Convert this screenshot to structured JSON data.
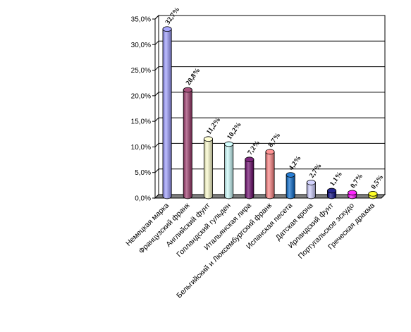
{
  "chart_data": {
    "type": "bar",
    "style": "3d-cylinder",
    "categories": [
      "Немецкая марка",
      "Французский франк",
      "Английский фунт",
      "Голландский гульден",
      "Итальянская лира",
      "Бельгийский и Люксембургский франк",
      "Испанская песета",
      "Датская крона",
      "Ирландский фунт",
      "Португальское эскудо",
      "Греческая драхма"
    ],
    "values": [
      32.7,
      20.8,
      11.2,
      10.2,
      7.2,
      8.7,
      4.2,
      2.7,
      1.1,
      0.7,
      0.5
    ],
    "data_labels": [
      "32,7%",
      "20,8%",
      "11,2%",
      "10,2%",
      "7,2%",
      "8,7%",
      "4,2%",
      "2,7%",
      "1,1%",
      "0,7%",
      "0,5%"
    ],
    "y_ticks": [
      "0,0%",
      "5,0%",
      "10,0%",
      "15,0%",
      "20,0%",
      "25,0%",
      "30,0%",
      "35,0%"
    ],
    "ylim": [
      0,
      35
    ],
    "grid": true,
    "legend": "none",
    "title": "",
    "xlabel": "",
    "ylabel": "",
    "colors": [
      "#9999ff",
      "#993366",
      "#ffffcc",
      "#ccffff",
      "#660066",
      "#ff8080",
      "#0066cc",
      "#ccccff",
      "#000080",
      "#ff00ff",
      "#ffff00"
    ],
    "floor_color": "#808080"
  }
}
